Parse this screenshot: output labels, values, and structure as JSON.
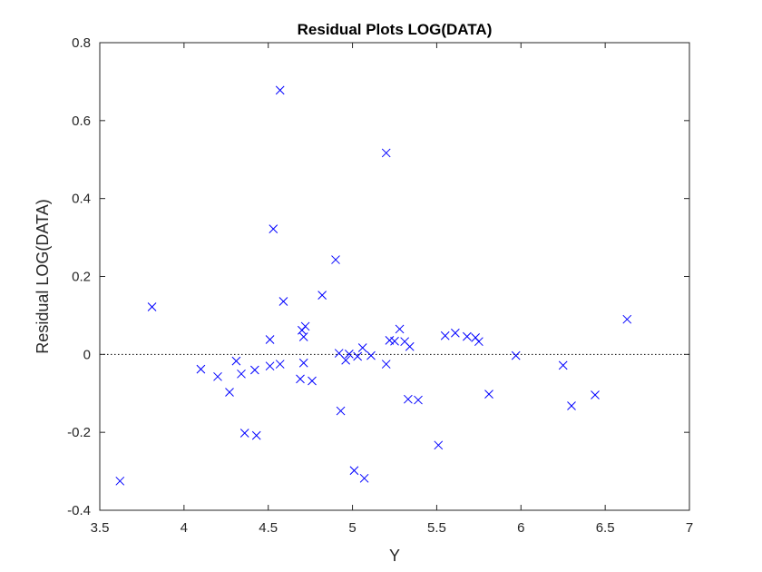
{
  "chart_data": {
    "type": "scatter",
    "title": "Residual Plots LOG(DATA)",
    "xlabel": "Y",
    "ylabel": "Residual LOG(DATA)",
    "xlim": [
      3.5,
      7
    ],
    "ylim": [
      -0.4,
      0.8
    ],
    "xticks": [
      "3.5",
      "4",
      "4.5",
      "5",
      "5.5",
      "6",
      "6.5",
      "7"
    ],
    "yticks": [
      "-0.4",
      "-0.2",
      "0",
      "0.2",
      "0.4",
      "0.6",
      "0.8"
    ],
    "grid": false,
    "zero_line": true,
    "marker": "x",
    "marker_color": "#0000ff",
    "points": [
      {
        "x": 3.62,
        "y": -0.325
      },
      {
        "x": 3.81,
        "y": 0.122
      },
      {
        "x": 4.1,
        "y": -0.038
      },
      {
        "x": 4.2,
        "y": -0.057
      },
      {
        "x": 4.27,
        "y": -0.097
      },
      {
        "x": 4.31,
        "y": -0.017
      },
      {
        "x": 4.34,
        "y": -0.05
      },
      {
        "x": 4.36,
        "y": -0.202
      },
      {
        "x": 4.42,
        "y": -0.04
      },
      {
        "x": 4.43,
        "y": -0.208
      },
      {
        "x": 4.51,
        "y": 0.038
      },
      {
        "x": 4.51,
        "y": -0.03
      },
      {
        "x": 4.53,
        "y": 0.322
      },
      {
        "x": 4.57,
        "y": 0.678
      },
      {
        "x": 4.57,
        "y": -0.025
      },
      {
        "x": 4.59,
        "y": 0.136
      },
      {
        "x": 4.69,
        "y": -0.063
      },
      {
        "x": 4.7,
        "y": 0.062
      },
      {
        "x": 4.71,
        "y": 0.045
      },
      {
        "x": 4.71,
        "y": -0.022
      },
      {
        "x": 4.72,
        "y": 0.072
      },
      {
        "x": 4.76,
        "y": -0.068
      },
      {
        "x": 4.82,
        "y": 0.152
      },
      {
        "x": 4.9,
        "y": 0.243
      },
      {
        "x": 4.92,
        "y": 0.003
      },
      {
        "x": 4.93,
        "y": -0.145
      },
      {
        "x": 4.96,
        "y": -0.015
      },
      {
        "x": 4.98,
        "y": 0.001
      },
      {
        "x": 5.01,
        "y": -0.298
      },
      {
        "x": 5.03,
        "y": -0.005
      },
      {
        "x": 5.06,
        "y": 0.017
      },
      {
        "x": 5.07,
        "y": -0.318
      },
      {
        "x": 5.11,
        "y": -0.003
      },
      {
        "x": 5.2,
        "y": 0.517
      },
      {
        "x": 5.2,
        "y": -0.025
      },
      {
        "x": 5.22,
        "y": 0.036
      },
      {
        "x": 5.25,
        "y": 0.034
      },
      {
        "x": 5.28,
        "y": 0.065
      },
      {
        "x": 5.31,
        "y": 0.033
      },
      {
        "x": 5.33,
        "y": -0.115
      },
      {
        "x": 5.34,
        "y": 0.02
      },
      {
        "x": 5.39,
        "y": -0.117
      },
      {
        "x": 5.51,
        "y": -0.233
      },
      {
        "x": 5.55,
        "y": 0.048
      },
      {
        "x": 5.61,
        "y": 0.055
      },
      {
        "x": 5.68,
        "y": 0.046
      },
      {
        "x": 5.73,
        "y": 0.043
      },
      {
        "x": 5.75,
        "y": 0.033
      },
      {
        "x": 5.81,
        "y": -0.102
      },
      {
        "x": 5.97,
        "y": -0.003
      },
      {
        "x": 6.25,
        "y": -0.028
      },
      {
        "x": 6.3,
        "y": -0.132
      },
      {
        "x": 6.44,
        "y": -0.104
      },
      {
        "x": 6.63,
        "y": 0.09
      }
    ]
  }
}
